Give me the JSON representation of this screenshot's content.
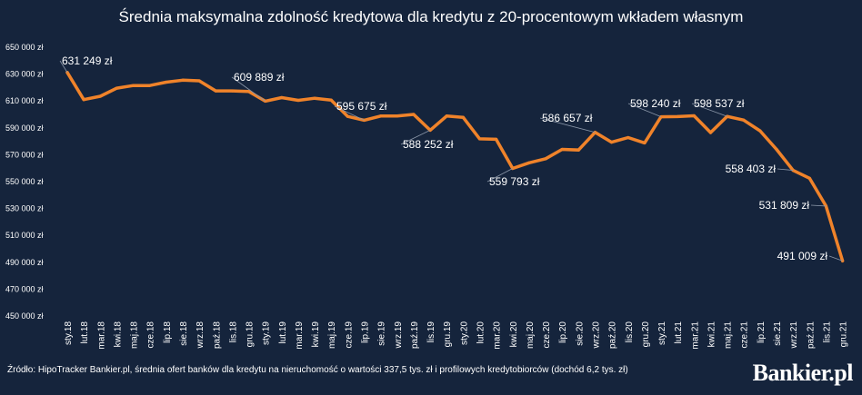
{
  "chart_data": {
    "type": "line",
    "title": "Średnia maksymalna zdolność kredytowa dla kredytu z 20-procentowym wkładem własnym",
    "xlabel": "",
    "ylabel": "",
    "ylim": [
      450000,
      650000
    ],
    "yticks": [
      450000,
      470000,
      490000,
      510000,
      530000,
      550000,
      570000,
      590000,
      610000,
      630000,
      650000
    ],
    "ytick_labels": [
      "450 000 zł",
      "470 000 zł",
      "490 000 zł",
      "510 000 zł",
      "530 000 zł",
      "550 000 zł",
      "570 000 zł",
      "590 000 zł",
      "610 000 zł",
      "630 000 zł",
      "650 000 zł"
    ],
    "grid": false,
    "legend": "none",
    "line_color": "#f0832a",
    "categories": [
      "sty.18",
      "lut.18",
      "mar.18",
      "kwi.18",
      "maj.18",
      "cze.18",
      "lip.18",
      "sie.18",
      "wrz.18",
      "paź.18",
      "lis.18",
      "gru.18",
      "sty.19",
      "lut.19",
      "mar.19",
      "kwi.19",
      "maj.19",
      "cze.19",
      "lip.19",
      "sie.19",
      "wrz.19",
      "paź.19",
      "lis.19",
      "gru.19",
      "sty.20",
      "lut.20",
      "mar.20",
      "kwi.20",
      "maj.20",
      "cze.20",
      "lip.20",
      "sie.20",
      "wrz.20",
      "paź.20",
      "lis.20",
      "gru.20",
      "sty.21",
      "lut.21",
      "mar.21",
      "kwi.21",
      "maj.21",
      "cze.21",
      "lip.21",
      "sie.21",
      "wrz.21",
      "paź.21",
      "lis.21",
      "gru.21"
    ],
    "values": [
      631249,
      611000,
      613500,
      619500,
      621500,
      621500,
      624000,
      625500,
      625000,
      617500,
      617500,
      617000,
      609889,
      612500,
      610500,
      612000,
      610700,
      598500,
      595675,
      598800,
      598800,
      600000,
      588252,
      598800,
      597800,
      581800,
      581500,
      559793,
      564000,
      567000,
      574000,
      573500,
      586657,
      579300,
      582800,
      578800,
      598240,
      598400,
      599000,
      586500,
      598537,
      595800,
      587800,
      574000,
      558403,
      552500,
      531809,
      491009
    ],
    "annotations": [
      {
        "index": 0,
        "text": "631 249 zł"
      },
      {
        "index": 12,
        "text": "609 889 zł"
      },
      {
        "index": 18,
        "text": "595 675 zł"
      },
      {
        "index": 22,
        "text": "588 252 zł"
      },
      {
        "index": 27,
        "text": "559 793 zł"
      },
      {
        "index": 32,
        "text": "586 657 zł"
      },
      {
        "index": 36,
        "text": "598 240 zł"
      },
      {
        "index": 40,
        "text": "598 537 zł"
      },
      {
        "index": 44,
        "text": "558 403 zł"
      },
      {
        "index": 46,
        "text": "531 809 zł"
      },
      {
        "index": 47,
        "text": "491 009 zł"
      }
    ]
  },
  "source_note": "Źródło: HipoTracker Bankier.pl, średnia ofert banków dla kredytu na nieruchomość o wartości 337,5 tys. zł i profilowych kredytobiorców (dochód 6,2 tys. zł)",
  "logo_text": "Bankier.pl"
}
